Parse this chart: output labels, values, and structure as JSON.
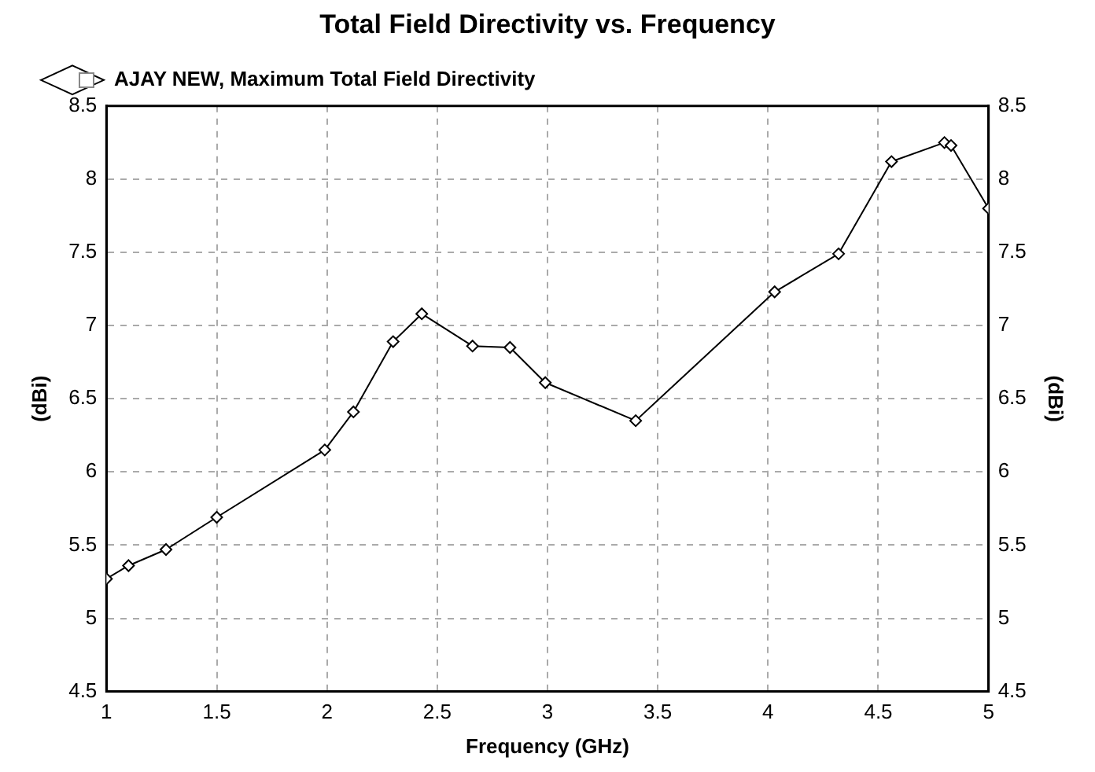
{
  "chart_data": {
    "type": "line",
    "title": "Total Field Directivity vs. Frequency",
    "xlabel": "Frequency (GHz)",
    "ylabel": "(dBi)",
    "y2label": "(dBi)",
    "x": [
      1.0,
      1.1,
      1.27,
      1.5,
      1.99,
      2.12,
      2.3,
      2.43,
      2.66,
      2.83,
      2.99,
      3.4,
      4.03,
      4.32,
      4.56,
      4.8,
      4.83,
      5.0
    ],
    "series": [
      {
        "name": "AJAY NEW, Maximum Total Field Directivity",
        "color": "#000000",
        "values": [
          5.27,
          5.36,
          5.47,
          5.69,
          6.15,
          6.41,
          6.89,
          7.08,
          6.86,
          6.85,
          6.61,
          6.35,
          7.23,
          7.49,
          8.12,
          8.25,
          8.23,
          7.8
        ]
      }
    ],
    "xlim": [
      1,
      5
    ],
    "xticks": [
      1,
      1.5,
      2,
      2.5,
      3,
      3.5,
      4,
      4.5,
      5
    ],
    "ylim": [
      4.5,
      8.5
    ],
    "yticks": [
      4.5,
      5,
      5.5,
      6,
      6.5,
      7,
      7.5,
      8,
      8.5
    ],
    "y2lim": [
      4.5,
      8.5
    ],
    "y2ticks": [
      4.5,
      5,
      5.5,
      6,
      6.5,
      7,
      7.5,
      8,
      8.5
    ],
    "grid": true,
    "legend": "top left",
    "marker": "diamond",
    "line_style": "solid"
  }
}
